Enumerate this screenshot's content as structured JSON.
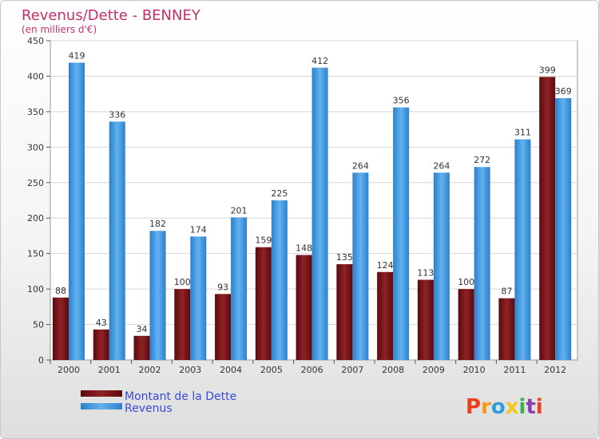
{
  "chart_data": {
    "type": "bar",
    "title": "Revenus/Dette - BENNEY",
    "subtitle": "(en milliers d'€)",
    "categories": [
      "2000",
      "2001",
      "2002",
      "2003",
      "2004",
      "2005",
      "2006",
      "2007",
      "2008",
      "2009",
      "2010",
      "2011",
      "2012"
    ],
    "series": [
      {
        "name": "Montant de la Dette",
        "color": "#7a1518",
        "values": [
          88,
          43,
          34,
          100,
          93,
          159,
          148,
          135,
          124,
          113,
          100,
          87,
          399
        ]
      },
      {
        "name": "Revenus",
        "color": "#3c97e0",
        "values": [
          419,
          336,
          182,
          174,
          201,
          225,
          412,
          264,
          356,
          264,
          272,
          311,
          369
        ]
      }
    ],
    "ylim": [
      0,
      450
    ],
    "yticks": [
      0,
      50,
      100,
      150,
      200,
      250,
      300,
      350,
      400,
      450
    ],
    "grid": true,
    "legend": "bottom-left"
  },
  "branding": {
    "logo_text": "Proxiti",
    "logo_colors": [
      "#e8401c",
      "#f39a1c",
      "#2aa0d8",
      "#f5c518",
      "#3cb04a",
      "#8a3fb0",
      "#e8401c"
    ]
  }
}
